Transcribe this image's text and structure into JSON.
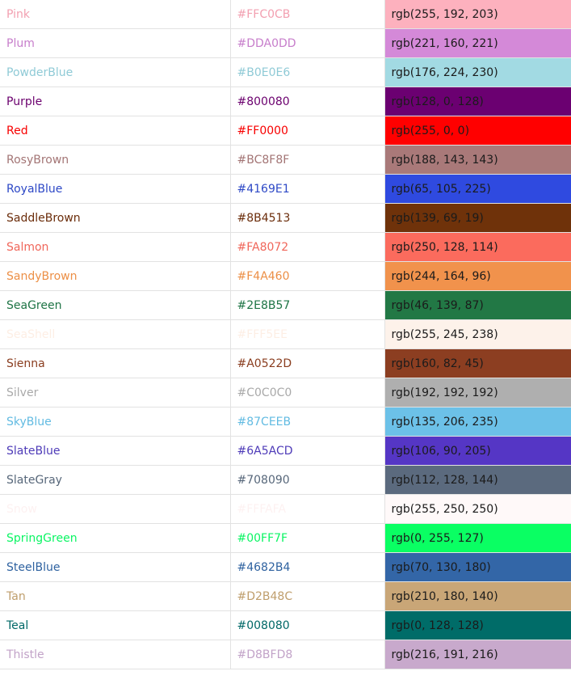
{
  "colors": [
    {
      "name": "Pink",
      "hex": "#FFC0CB",
      "rgb": "rgb(255, 192, 203)",
      "text_color": "#f29fb0",
      "swatch": "#fdb1be"
    },
    {
      "name": "Plum",
      "hex": "#DDA0DD",
      "rgb": "rgb(221, 160, 221)",
      "text_color": "#c77ecb",
      "swatch": "#d489d8"
    },
    {
      "name": "PowderBlue",
      "hex": "#B0E0E6",
      "rgb": "rgb(176, 224, 230)",
      "text_color": "#8fcad6",
      "swatch": "#a2dae3"
    },
    {
      "name": "Purple",
      "hex": "#800080",
      "rgb": "rgb(128, 0, 128)",
      "text_color": "#6b006e",
      "swatch": "#6b0071"
    },
    {
      "name": "Red",
      "hex": "#FF0000",
      "rgb": "rgb(255, 0, 0)",
      "text_color": "#f80000",
      "swatch": "#ff0000"
    },
    {
      "name": "RosyBrown",
      "hex": "#BC8F8F",
      "rgb": "rgb(188, 143, 143)",
      "text_color": "#a37575",
      "swatch": "#a97979"
    },
    {
      "name": "RoyalBlue",
      "hex": "#4169E1",
      "rgb": "rgb(65, 105, 225)",
      "text_color": "#2d48c6",
      "swatch": "#2f4ae0"
    },
    {
      "name": "SaddleBrown",
      "hex": "#8B4513",
      "rgb": "rgb(139, 69, 19)",
      "text_color": "#6b2d0b",
      "swatch": "#6f320a"
    },
    {
      "name": "Salmon",
      "hex": "#FA8072",
      "rgb": "rgb(250, 128, 114)",
      "text_color": "#f0665a",
      "swatch": "#fb6b5d"
    },
    {
      "name": "SandyBrown",
      "hex": "#F4A460",
      "rgb": "rgb(244, 164, 96)",
      "text_color": "#ec8f46",
      "swatch": "#f1924c"
    },
    {
      "name": "SeaGreen",
      "hex": "#2E8B57",
      "rgb": "rgb(46, 139, 87)",
      "text_color": "#1e7445",
      "swatch": "#227845"
    },
    {
      "name": "SeaShell",
      "hex": "#FFF5EE",
      "rgb": "rgb(255, 245, 238)",
      "text_color": "#fdeee4",
      "swatch": "#fdf2ea"
    },
    {
      "name": "Sienna",
      "hex": "#A0522D",
      "rgb": "rgb(160, 82, 45)",
      "text_color": "#8a3d1f",
      "swatch": "#8c3e21"
    },
    {
      "name": "Silver",
      "hex": "#C0C0C0",
      "rgb": "rgb(192, 192, 192)",
      "text_color": "#a9a9a9",
      "swatch": "#afafaf"
    },
    {
      "name": "SkyBlue",
      "hex": "#87CEEB",
      "rgb": "rgb(135, 206, 235)",
      "text_color": "#62bbe2",
      "swatch": "#6cc1e8"
    },
    {
      "name": "SlateBlue",
      "hex": "#6A5ACD",
      "rgb": "rgb(106, 90, 205)",
      "text_color": "#4e3bb8",
      "swatch": "#5536c5"
    },
    {
      "name": "SlateGray",
      "hex": "#708090",
      "rgb": "rgb(112, 128, 144)",
      "text_color": "#57677a",
      "swatch": "#5b6a7e"
    },
    {
      "name": "Snow",
      "hex": "#FFFAFA",
      "rgb": "rgb(255, 250, 250)",
      "text_color": "#fdf1f1",
      "swatch": "#fff9f9"
    },
    {
      "name": "SpringGreen",
      "hex": "#00FF7F",
      "rgb": "rgb(0, 255, 127)",
      "text_color": "#0af563",
      "swatch": "#0aff63"
    },
    {
      "name": "SteelBlue",
      "hex": "#4682B4",
      "rgb": "rgb(70, 130, 180)",
      "text_color": "#2f62a0",
      "swatch": "#3366a7"
    },
    {
      "name": "Tan",
      "hex": "#D2B48C",
      "rgb": "rgb(210, 180, 140)",
      "text_color": "#bf9e6c",
      "swatch": "#c9a677"
    },
    {
      "name": "Teal",
      "hex": "#008080",
      "rgb": "rgb(0, 128, 128)",
      "text_color": "#006867",
      "swatch": "#006c68"
    },
    {
      "name": "Thistle",
      "hex": "#D8BFD8",
      "rgb": "rgb(216, 191, 216)",
      "text_color": "#c2a3c8",
      "swatch": "#c8a9cc"
    }
  ]
}
